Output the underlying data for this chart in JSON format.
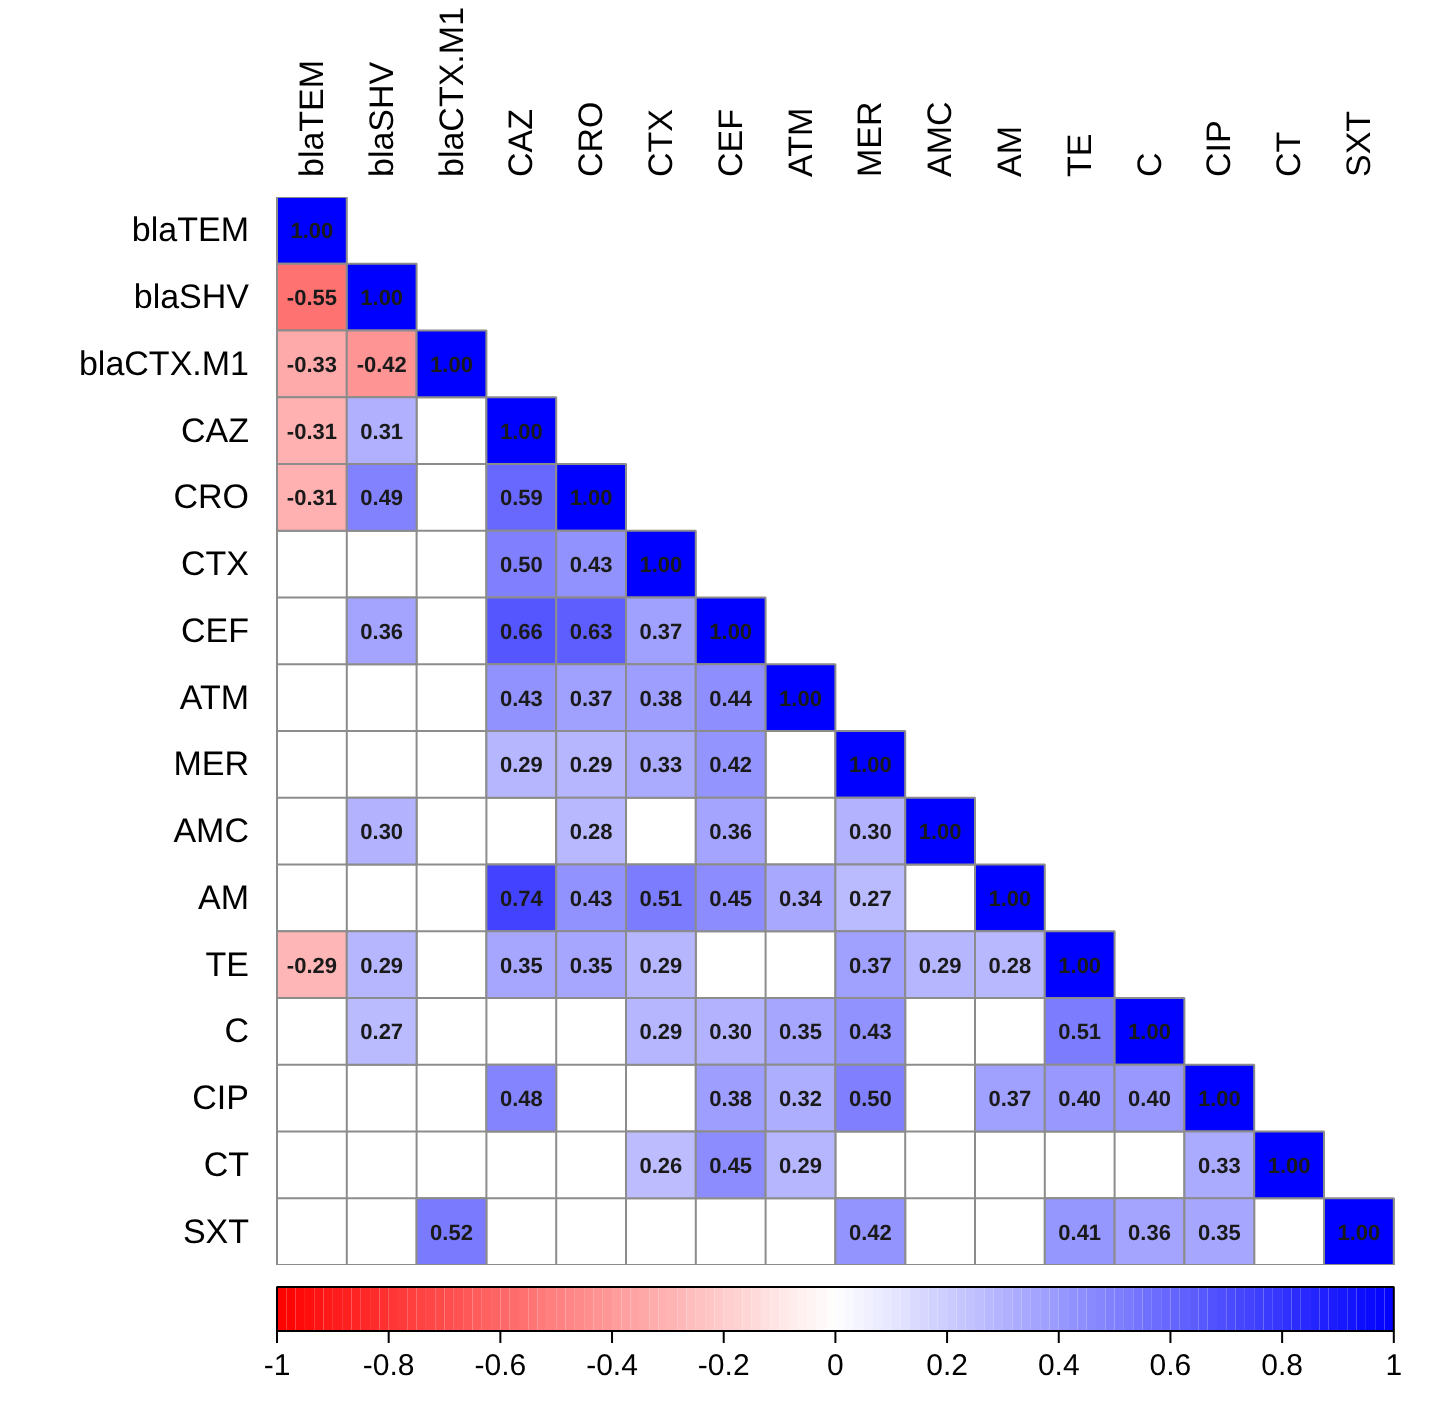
{
  "chart_data": {
    "type": "heatmap",
    "categories": [
      "blaTEM",
      "blaSHV",
      "blaCTX.M1",
      "CAZ",
      "CRO",
      "CTX",
      "CEF",
      "ATM",
      "MER",
      "AMC",
      "AM",
      "TE",
      "C",
      "CIP",
      "CT",
      "SXT"
    ],
    "y_categories": [
      "blaTEM",
      "blaSHV",
      "blaCTX.M1",
      "CAZ",
      "CRO",
      "CTX",
      "CEF",
      "ATM",
      "MER",
      "AMC",
      "AM",
      "TE",
      "C",
      "CIP",
      "CT",
      "SXT"
    ],
    "cells": [
      [
        1.0,
        null,
        null,
        null,
        null,
        null,
        null,
        null,
        null,
        null,
        null,
        null,
        null,
        null,
        null,
        null
      ],
      [
        -0.55,
        1.0,
        null,
        null,
        null,
        null,
        null,
        null,
        null,
        null,
        null,
        null,
        null,
        null,
        null,
        null
      ],
      [
        -0.33,
        -0.42,
        1.0,
        null,
        null,
        null,
        null,
        null,
        null,
        null,
        null,
        null,
        null,
        null,
        null,
        null
      ],
      [
        -0.31,
        0.31,
        null,
        1.0,
        null,
        null,
        null,
        null,
        null,
        null,
        null,
        null,
        null,
        null,
        null,
        null
      ],
      [
        -0.31,
        0.49,
        null,
        0.59,
        1.0,
        null,
        null,
        null,
        null,
        null,
        null,
        null,
        null,
        null,
        null,
        null
      ],
      [
        null,
        null,
        null,
        0.5,
        0.43,
        1.0,
        null,
        null,
        null,
        null,
        null,
        null,
        null,
        null,
        null,
        null
      ],
      [
        null,
        0.36,
        null,
        0.66,
        0.63,
        0.37,
        1.0,
        null,
        null,
        null,
        null,
        null,
        null,
        null,
        null,
        null
      ],
      [
        null,
        null,
        null,
        0.43,
        0.37,
        0.38,
        0.44,
        1.0,
        null,
        null,
        null,
        null,
        null,
        null,
        null,
        null
      ],
      [
        null,
        null,
        null,
        0.29,
        0.29,
        0.33,
        0.42,
        null,
        1.0,
        null,
        null,
        null,
        null,
        null,
        null,
        null
      ],
      [
        null,
        0.3,
        null,
        null,
        0.28,
        null,
        0.36,
        null,
        0.3,
        1.0,
        null,
        null,
        null,
        null,
        null,
        null
      ],
      [
        null,
        null,
        null,
        0.74,
        0.43,
        0.51,
        0.45,
        0.34,
        0.27,
        null,
        1.0,
        null,
        null,
        null,
        null,
        null
      ],
      [
        -0.29,
        0.29,
        null,
        0.35,
        0.35,
        0.29,
        null,
        null,
        0.37,
        0.29,
        0.28,
        1.0,
        null,
        null,
        null,
        null
      ],
      [
        null,
        0.27,
        null,
        null,
        null,
        0.29,
        0.3,
        0.35,
        0.43,
        null,
        null,
        0.51,
        1.0,
        null,
        null,
        null
      ],
      [
        null,
        null,
        null,
        0.48,
        null,
        null,
        0.38,
        0.32,
        0.5,
        null,
        0.37,
        0.4,
        0.4,
        1.0,
        null,
        null
      ],
      [
        null,
        null,
        null,
        null,
        null,
        0.26,
        0.45,
        0.29,
        null,
        null,
        null,
        null,
        null,
        0.33,
        1.0,
        null
      ],
      [
        null,
        null,
        0.52,
        null,
        null,
        null,
        null,
        null,
        0.42,
        null,
        null,
        0.41,
        0.36,
        0.35,
        null,
        1.0
      ]
    ],
    "cell_labels": [
      [
        "1.00",
        null,
        null,
        null,
        null,
        null,
        null,
        null,
        null,
        null,
        null,
        null,
        null,
        null,
        null,
        null
      ],
      [
        "-0.55",
        "1.00",
        null,
        null,
        null,
        null,
        null,
        null,
        null,
        null,
        null,
        null,
        null,
        null,
        null,
        null
      ],
      [
        "-0.33",
        "-0.42",
        "1.00",
        null,
        null,
        null,
        null,
        null,
        null,
        null,
        null,
        null,
        null,
        null,
        null,
        null
      ],
      [
        "-0.31",
        "0.31",
        null,
        "1.00",
        null,
        null,
        null,
        null,
        null,
        null,
        null,
        null,
        null,
        null,
        null,
        null
      ],
      [
        "-0.31",
        "0.49",
        null,
        "0.59",
        "1.00",
        null,
        null,
        null,
        null,
        null,
        null,
        null,
        null,
        null,
        null,
        null
      ],
      [
        null,
        null,
        null,
        "0.50",
        "0.43",
        "1.00",
        null,
        null,
        null,
        null,
        null,
        null,
        null,
        null,
        null,
        null
      ],
      [
        null,
        "0.36",
        null,
        "0.66",
        "0.63",
        "0.37",
        "1.00",
        null,
        null,
        null,
        null,
        null,
        null,
        null,
        null,
        null
      ],
      [
        null,
        null,
        null,
        "0.43",
        "0.37",
        "0.38",
        "0.44",
        "1.00",
        null,
        null,
        null,
        null,
        null,
        null,
        null,
        null
      ],
      [
        null,
        null,
        null,
        "0.29",
        "0.29",
        "0.33",
        "0.42",
        null,
        "1.00",
        null,
        null,
        null,
        null,
        null,
        null,
        null
      ],
      [
        null,
        "0.30",
        null,
        null,
        "0.28",
        null,
        "0.36",
        null,
        "0.30",
        "1.00",
        null,
        null,
        null,
        null,
        null,
        null
      ],
      [
        null,
        null,
        null,
        "0.74",
        "0.43",
        "0.51",
        "0.45",
        "0.34",
        "0.27",
        null,
        "1.00",
        null,
        null,
        null,
        null,
        null
      ],
      [
        "-0.29",
        "0.29",
        null,
        "0.35",
        "0.35",
        "0.29",
        null,
        null,
        "0.37",
        "0.29",
        "0.28",
        "1.00",
        null,
        null,
        null,
        null
      ],
      [
        null,
        "0.27",
        null,
        null,
        null,
        "0.29",
        "0.30",
        "0.35",
        "0.43",
        null,
        null,
        "0.51",
        "1.00",
        null,
        null,
        null
      ],
      [
        null,
        null,
        null,
        "0.48",
        null,
        null,
        "0.38",
        "0.32",
        "0.50",
        null,
        "0.37",
        "0.40",
        "0.40",
        "1.00",
        null,
        null
      ],
      [
        null,
        null,
        null,
        null,
        null,
        "0.26",
        "0.45",
        "0.29",
        null,
        null,
        null,
        null,
        null,
        "0.33",
        "1.00",
        null
      ],
      [
        null,
        null,
        "0.52",
        null,
        null,
        null,
        null,
        null,
        "0.42",
        null,
        null,
        "0.41",
        "0.36",
        "0.35",
        null,
        "1.00"
      ]
    ],
    "clim": [
      -1,
      1
    ],
    "grid": true,
    "cticks": [
      -1,
      -0.8,
      -0.6,
      -0.4,
      -0.2,
      0,
      0.2,
      0.4,
      0.6,
      0.8,
      1
    ]
  }
}
